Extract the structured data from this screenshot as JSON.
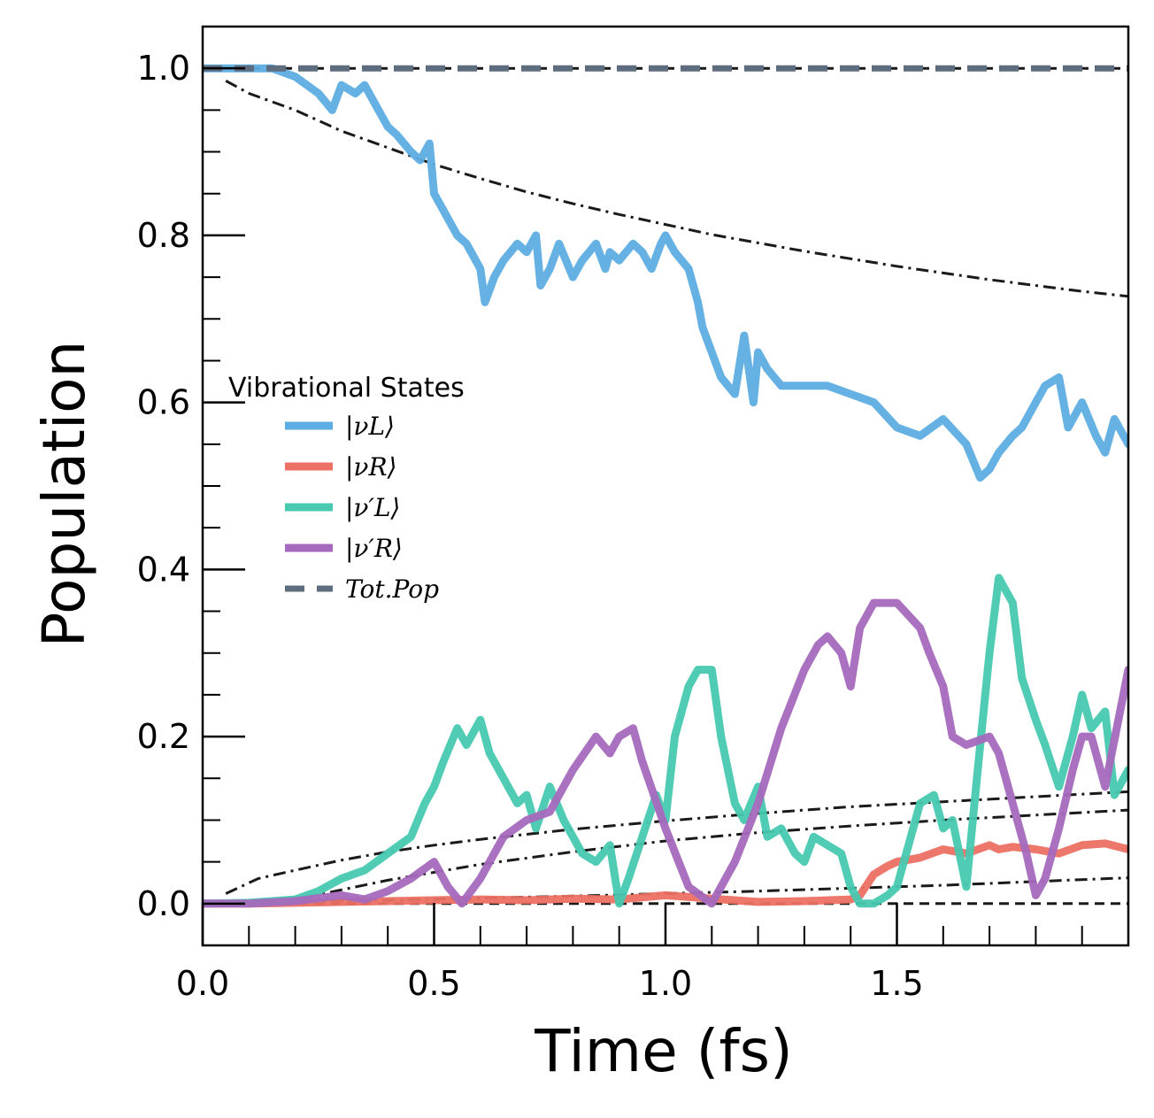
{
  "chart_data": {
    "type": "line",
    "xlabel": "Time (fs)",
    "ylabel": "Population",
    "xlim": [
      0.0,
      2.0
    ],
    "ylim": [
      -0.05,
      1.05
    ],
    "xticks": [
      0.0,
      0.5,
      1.0,
      1.5
    ],
    "xtick_labels": [
      "0.0",
      "0.5",
      "1.0",
      "1.5"
    ],
    "yticks": [
      0.0,
      0.2,
      0.4,
      0.6,
      0.8,
      1.0
    ],
    "ytick_labels": [
      "0.0",
      "0.2",
      "0.4",
      "0.6",
      "0.8",
      "1.0"
    ],
    "grid": false,
    "legend": {
      "title": "Vibrational States",
      "placement": "center-left",
      "entries": [
        "|νL⟩",
        "|νR⟩",
        "|ν′L⟩",
        "|ν′R⟩",
        "Tot.Pop"
      ]
    },
    "series": [
      {
        "name": "|νL⟩",
        "color": "#5DADE2",
        "style": "solid",
        "x": [
          0.0,
          0.05,
          0.1,
          0.15,
          0.2,
          0.25,
          0.28,
          0.3,
          0.33,
          0.35,
          0.38,
          0.4,
          0.42,
          0.45,
          0.47,
          0.49,
          0.5,
          0.52,
          0.55,
          0.57,
          0.6,
          0.61,
          0.63,
          0.65,
          0.68,
          0.7,
          0.72,
          0.73,
          0.75,
          0.77,
          0.8,
          0.82,
          0.85,
          0.87,
          0.88,
          0.9,
          0.93,
          0.95,
          0.97,
          0.99,
          1.0,
          1.02,
          1.05,
          1.07,
          1.08,
          1.1,
          1.12,
          1.15,
          1.17,
          1.19,
          1.2,
          1.22,
          1.25,
          1.3,
          1.35,
          1.4,
          1.45,
          1.5,
          1.55,
          1.6,
          1.65,
          1.68,
          1.7,
          1.72,
          1.75,
          1.77,
          1.8,
          1.82,
          1.85,
          1.87,
          1.9,
          1.93,
          1.95,
          1.97,
          2.0
        ],
        "y": [
          1.0,
          1.0,
          1.0,
          1.0,
          0.99,
          0.97,
          0.95,
          0.98,
          0.97,
          0.98,
          0.95,
          0.93,
          0.92,
          0.9,
          0.89,
          0.91,
          0.85,
          0.83,
          0.8,
          0.79,
          0.76,
          0.72,
          0.75,
          0.77,
          0.79,
          0.78,
          0.8,
          0.74,
          0.76,
          0.79,
          0.75,
          0.77,
          0.79,
          0.76,
          0.78,
          0.77,
          0.79,
          0.78,
          0.76,
          0.79,
          0.8,
          0.78,
          0.76,
          0.72,
          0.69,
          0.66,
          0.63,
          0.61,
          0.68,
          0.6,
          0.66,
          0.64,
          0.62,
          0.62,
          0.62,
          0.61,
          0.6,
          0.57,
          0.56,
          0.58,
          0.55,
          0.51,
          0.52,
          0.54,
          0.56,
          0.57,
          0.6,
          0.62,
          0.63,
          0.57,
          0.6,
          0.56,
          0.54,
          0.58,
          0.55
        ]
      },
      {
        "name": "|νR⟩",
        "color": "#EC7063",
        "style": "solid",
        "x": [
          0.0,
          0.1,
          0.2,
          0.3,
          0.4,
          0.5,
          0.6,
          0.7,
          0.8,
          0.9,
          1.0,
          1.1,
          1.2,
          1.3,
          1.4,
          1.42,
          1.45,
          1.48,
          1.5,
          1.55,
          1.6,
          1.65,
          1.7,
          1.72,
          1.75,
          1.8,
          1.85,
          1.9,
          1.95,
          2.0
        ],
        "y": [
          0.0,
          0.0,
          0.001,
          0.002,
          0.003,
          0.004,
          0.005,
          0.004,
          0.006,
          0.005,
          0.01,
          0.006,
          0.002,
          0.003,
          0.005,
          0.01,
          0.035,
          0.045,
          0.05,
          0.055,
          0.065,
          0.06,
          0.07,
          0.065,
          0.068,
          0.065,
          0.06,
          0.07,
          0.072,
          0.065
        ]
      },
      {
        "name": "|ν′L⟩",
        "color": "#48C9B0",
        "style": "solid",
        "x": [
          0.0,
          0.1,
          0.2,
          0.25,
          0.3,
          0.35,
          0.4,
          0.45,
          0.48,
          0.5,
          0.52,
          0.55,
          0.57,
          0.6,
          0.62,
          0.65,
          0.68,
          0.7,
          0.72,
          0.75,
          0.78,
          0.8,
          0.82,
          0.85,
          0.88,
          0.9,
          0.92,
          0.95,
          0.98,
          1.0,
          1.02,
          1.05,
          1.07,
          1.1,
          1.12,
          1.15,
          1.17,
          1.2,
          1.22,
          1.25,
          1.28,
          1.3,
          1.32,
          1.35,
          1.38,
          1.4,
          1.42,
          1.45,
          1.48,
          1.5,
          1.52,
          1.55,
          1.58,
          1.6,
          1.62,
          1.65,
          1.68,
          1.7,
          1.72,
          1.75,
          1.77,
          1.8,
          1.82,
          1.85,
          1.88,
          1.9,
          1.92,
          1.95,
          1.97,
          2.0
        ],
        "y": [
          0.0,
          0.001,
          0.005,
          0.015,
          0.03,
          0.04,
          0.06,
          0.08,
          0.12,
          0.14,
          0.17,
          0.21,
          0.19,
          0.22,
          0.18,
          0.15,
          0.12,
          0.13,
          0.09,
          0.14,
          0.1,
          0.08,
          0.06,
          0.05,
          0.07,
          0.0,
          0.03,
          0.08,
          0.13,
          0.1,
          0.2,
          0.26,
          0.28,
          0.28,
          0.2,
          0.12,
          0.1,
          0.14,
          0.08,
          0.09,
          0.06,
          0.05,
          0.08,
          0.07,
          0.06,
          0.02,
          0.0,
          0.0,
          0.01,
          0.02,
          0.06,
          0.12,
          0.13,
          0.09,
          0.1,
          0.02,
          0.19,
          0.3,
          0.39,
          0.36,
          0.27,
          0.22,
          0.19,
          0.14,
          0.2,
          0.25,
          0.21,
          0.23,
          0.13,
          0.16
        ]
      },
      {
        "name": "|ν′R⟩",
        "color": "#A569BD",
        "style": "solid",
        "x": [
          0.0,
          0.1,
          0.2,
          0.3,
          0.35,
          0.4,
          0.45,
          0.5,
          0.53,
          0.56,
          0.6,
          0.65,
          0.7,
          0.75,
          0.8,
          0.85,
          0.88,
          0.9,
          0.93,
          0.95,
          1.0,
          1.05,
          1.1,
          1.15,
          1.2,
          1.25,
          1.3,
          1.33,
          1.35,
          1.38,
          1.4,
          1.42,
          1.45,
          1.5,
          1.55,
          1.57,
          1.6,
          1.62,
          1.65,
          1.7,
          1.72,
          1.75,
          1.78,
          1.8,
          1.82,
          1.85,
          1.88,
          1.9,
          1.92,
          1.95,
          2.0
        ],
        "y": [
          0.0,
          0.0,
          0.003,
          0.01,
          0.005,
          0.015,
          0.03,
          0.05,
          0.02,
          0.0,
          0.03,
          0.08,
          0.1,
          0.11,
          0.16,
          0.2,
          0.18,
          0.2,
          0.21,
          0.17,
          0.09,
          0.02,
          0.0,
          0.05,
          0.12,
          0.21,
          0.28,
          0.31,
          0.32,
          0.3,
          0.26,
          0.33,
          0.36,
          0.36,
          0.33,
          0.3,
          0.26,
          0.2,
          0.19,
          0.2,
          0.18,
          0.12,
          0.06,
          0.01,
          0.03,
          0.09,
          0.16,
          0.2,
          0.2,
          0.14,
          0.28
        ]
      },
      {
        "name": "Tot.Pop",
        "color": "#5D6D7E",
        "style": "dashed",
        "x": [
          0.0,
          2.0
        ],
        "y": [
          1.0,
          1.0
        ]
      }
    ],
    "reference_lines": [
      {
        "color": "#1a1a1a",
        "style": "dashed",
        "x": [
          0.0,
          2.0
        ],
        "y": [
          1.0,
          1.0
        ]
      },
      {
        "color": "#1a1a1a",
        "style": "dashed",
        "x": [
          0.0,
          2.0
        ],
        "y": [
          0.0,
          0.0
        ]
      },
      {
        "color": "#1a1a1a",
        "style": "dashdot",
        "x": [
          0.05,
          0.1,
          0.2,
          0.3,
          0.4,
          0.5,
          0.6,
          0.7,
          0.8,
          0.9,
          1.0,
          1.1,
          1.2,
          1.3,
          1.4,
          1.5,
          1.6,
          1.7,
          1.8,
          1.9,
          2.0
        ],
        "y": [
          0.985,
          0.97,
          0.95,
          0.925,
          0.905,
          0.885,
          0.868,
          0.852,
          0.838,
          0.825,
          0.813,
          0.801,
          0.791,
          0.781,
          0.772,
          0.763,
          0.755,
          0.747,
          0.74,
          0.733,
          0.727
        ]
      },
      {
        "color": "#1a1a1a",
        "style": "dashdot",
        "x": [
          0.05,
          0.12,
          0.2,
          0.3,
          0.4,
          0.5,
          0.6,
          0.7,
          0.8,
          0.9,
          1.0,
          1.2,
          1.4,
          1.6,
          1.8,
          2.0
        ],
        "y": [
          0.012,
          0.03,
          0.04,
          0.052,
          0.062,
          0.07,
          0.077,
          0.083,
          0.089,
          0.094,
          0.099,
          0.108,
          0.116,
          0.122,
          0.128,
          0.134
        ]
      },
      {
        "color": "#1a1a1a",
        "style": "dashdot",
        "x": [
          0.0,
          0.2,
          0.4,
          0.6,
          0.8,
          1.0,
          1.2,
          1.4,
          1.6,
          1.8,
          2.0
        ],
        "y": [
          0.0,
          0.005,
          0.028,
          0.047,
          0.062,
          0.075,
          0.085,
          0.093,
          0.1,
          0.106,
          0.112
        ]
      },
      {
        "color": "#1a1a1a",
        "style": "dashdot",
        "x": [
          0.0,
          0.4,
          0.8,
          1.2,
          1.6,
          2.0
        ],
        "y": [
          0.0,
          0.004,
          0.009,
          0.015,
          0.022,
          0.031
        ]
      }
    ]
  }
}
